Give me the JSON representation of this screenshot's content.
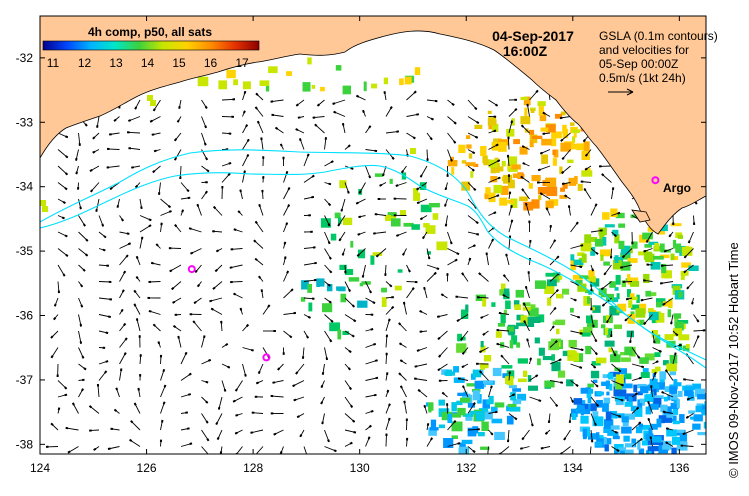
{
  "header": {
    "date": "04-Sep-2017",
    "time": "16:00Z"
  },
  "legend": {
    "title": "4h comp, p50, all sats",
    "ticks": [
      "11",
      "12",
      "13",
      "14",
      "15",
      "16",
      "17"
    ],
    "colors": [
      "#00008c",
      "#0046ff",
      "#00b4ff",
      "#00e6c8",
      "#3cd23c",
      "#c8e600",
      "#ffd200",
      "#ff8c00",
      "#e63200",
      "#8c0000"
    ]
  },
  "info": {
    "line1": "GSLA (0.1m contours)",
    "line2": "and velocities for",
    "line3": "05-Sep 00:00Z",
    "line4": "0.5m/s (1kt 24h)"
  },
  "argo": {
    "label": "Argo",
    "color": "#ff00ff"
  },
  "credit": "© IMOS 09-Nov-2017 10:52 Hobart Time",
  "colors": {
    "land": "#ffc896",
    "contour": "#00e0ff"
  },
  "chart_data": {
    "type": "map",
    "x_ticks": [
      "124",
      "126",
      "128",
      "130",
      "132",
      "134",
      "136"
    ],
    "y_ticks": [
      "-32",
      "-33",
      "-34",
      "-35",
      "-36",
      "-37",
      "-38"
    ],
    "lon_range": [
      124,
      136.5
    ],
    "lat_range": [
      -38.15,
      -31.35
    ],
    "argo_floats": [
      {
        "lon": 135.55,
        "lat": -33.9
      },
      {
        "lon": 126.85,
        "lat": -35.28
      },
      {
        "lon": 128.25,
        "lat": -36.65
      }
    ]
  }
}
